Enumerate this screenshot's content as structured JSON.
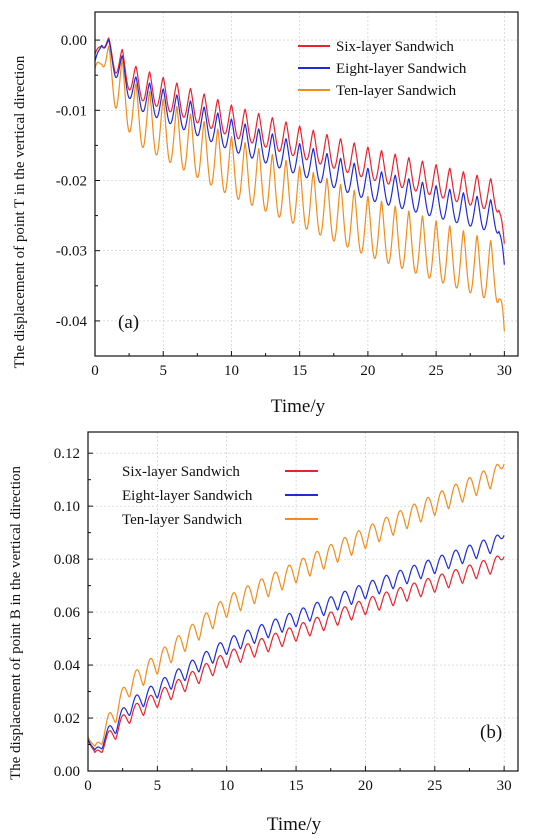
{
  "colors": {
    "six": "#e8232f",
    "eight": "#1f2bd6",
    "ten": "#f28c1b"
  },
  "chart_data": [
    {
      "type": "line",
      "panel_label": "(a)",
      "xlabel": "Time/y",
      "ylabel": "The displacement of point T in the vertical direction",
      "xlim": [
        0,
        31
      ],
      "ylim": [
        -0.045,
        0.004
      ],
      "xticks": [
        0,
        5,
        10,
        15,
        20,
        25,
        30
      ],
      "yticks": [
        0.0,
        -0.01,
        -0.02,
        -0.03,
        -0.04
      ],
      "ytick_labels": [
        "0.00",
        "-0.01",
        "-0.02",
        "-0.03",
        "-0.04"
      ],
      "grid": true,
      "legend_position": "top-right",
      "series": [
        {
          "name": "Six-layer Sandwich",
          "color": "#e8232f",
          "trend": [
            [
              0,
              -0.002
            ],
            [
              0.5,
              0.0
            ],
            [
              3,
              -0.006
            ],
            [
              10,
              -0.0115
            ],
            [
              20,
              -0.0175
            ],
            [
              30,
              -0.0225
            ]
          ],
          "amplitude": 0.0045,
          "final": -0.029
        },
        {
          "name": "Eight-layer Sandwich",
          "color": "#1f2bd6",
          "trend": [
            [
              0,
              -0.003
            ],
            [
              0.5,
              0.0
            ],
            [
              3,
              -0.0075
            ],
            [
              10,
              -0.0135
            ],
            [
              20,
              -0.0205
            ],
            [
              30,
              -0.0255
            ]
          ],
          "amplitude": 0.0045,
          "final": -0.032
        },
        {
          "name": "Ten-layer Sandwich",
          "color": "#f28c1b",
          "trend": [
            [
              0,
              -0.004
            ],
            [
              0.5,
              -0.002
            ],
            [
              3,
              -0.0105
            ],
            [
              10,
              -0.018
            ],
            [
              20,
              -0.0265
            ],
            [
              30,
              -0.0335
            ]
          ],
          "amplitude": 0.0085,
          "final": -0.0415
        }
      ]
    },
    {
      "type": "line",
      "panel_label": "(b)",
      "xlabel": "Time/y",
      "ylabel": "The displacement of point B in the vertical direction",
      "xlim": [
        0,
        31
      ],
      "ylim": [
        0,
        0.128
      ],
      "xticks": [
        0,
        5,
        10,
        15,
        20,
        25,
        30
      ],
      "yticks": [
        0.0,
        0.02,
        0.04,
        0.06,
        0.08,
        0.1,
        0.12
      ],
      "ytick_labels": [
        "0.00",
        "0.02",
        "0.04",
        "0.06",
        "0.08",
        "0.10",
        "0.12"
      ],
      "grid": true,
      "legend_position": "top-left",
      "series": [
        {
          "name": "Six-layer Sandwich",
          "color": "#e8232f",
          "trend": [
            [
              0,
              0.012
            ],
            [
              0.5,
              0.006
            ],
            [
              3,
              0.021
            ],
            [
              10,
              0.042
            ],
            [
              20,
              0.062
            ],
            [
              30,
              0.079
            ]
          ],
          "amplitude": 0.006,
          "final": 0.081
        },
        {
          "name": "Eight-layer Sandwich",
          "color": "#1f2bd6",
          "trend": [
            [
              0,
              0.012
            ],
            [
              0.5,
              0.007
            ],
            [
              3,
              0.024
            ],
            [
              10,
              0.047
            ],
            [
              20,
              0.068
            ],
            [
              30,
              0.087
            ]
          ],
          "amplitude": 0.006,
          "final": 0.089
        },
        {
          "name": "Ten-layer Sandwich",
          "color": "#f28c1b",
          "trend": [
            [
              0,
              0.013
            ],
            [
              0.5,
              0.008
            ],
            [
              3,
              0.032
            ],
            [
              10,
              0.062
            ],
            [
              20,
              0.088
            ],
            [
              30,
              0.113
            ]
          ],
          "amplitude": 0.008,
          "final": 0.116
        }
      ]
    }
  ]
}
